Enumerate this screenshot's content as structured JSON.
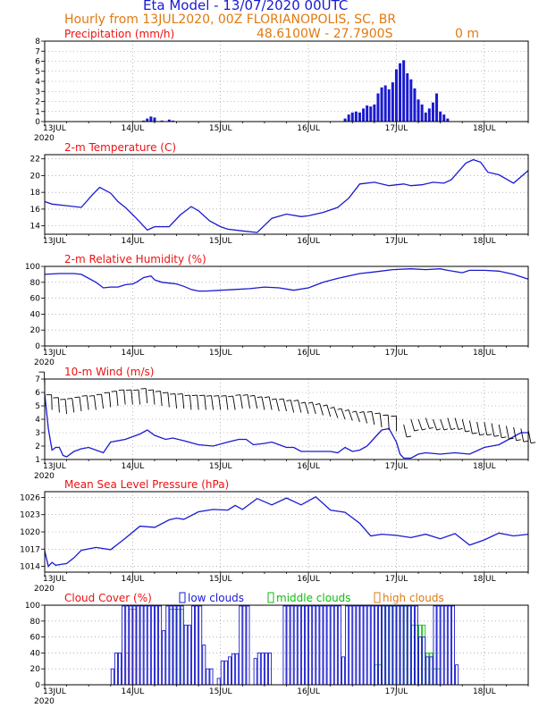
{
  "header": {
    "title": "Eta Model - 13/07/2020 00UTC",
    "line1": "Hourly from 13JUL2020, 00Z  FLORIANOPOLIS, SC, BR",
    "coords": "48.6100W - 27.7900S",
    "elevation": "0  m"
  },
  "x_axis": {
    "day_labels": [
      "13JUL",
      "14JUL",
      "15JUL",
      "16JUL",
      "17JUL",
      "18JUL"
    ],
    "year_label": "2020",
    "hours_total": 132
  },
  "colors": {
    "series": "#1a1ad0",
    "title_red": "#ee1111",
    "header_orange": "#e07a10",
    "low": "#1a1ad0",
    "middle": "#11bb11",
    "high": "#e07a10",
    "grid": "#888888"
  },
  "chart_data": [
    {
      "id": "precip",
      "type": "bar",
      "title": "Precipitation (mm/h)",
      "ylim": [
        0,
        8
      ],
      "yticks": [
        0,
        1,
        2,
        3,
        4,
        5,
        6,
        7,
        8
      ],
      "x_hours": [
        27,
        28,
        29,
        30,
        32,
        34,
        35,
        82,
        83,
        84,
        85,
        86,
        87,
        88,
        89,
        90,
        91,
        92,
        93,
        94,
        95,
        96,
        97,
        98,
        99,
        100,
        101,
        102,
        103,
        104,
        105,
        106,
        107,
        108,
        109,
        110
      ],
      "values": [
        0.1,
        0.3,
        0.5,
        0.4,
        0.1,
        0.2,
        0.1,
        0.3,
        0.7,
        0.9,
        1.0,
        0.9,
        1.3,
        1.6,
        1.5,
        1.7,
        2.8,
        3.4,
        3.6,
        3.2,
        3.9,
        5.2,
        5.8,
        6.1,
        4.8,
        4.2,
        3.3,
        2.2,
        1.7,
        0.9,
        1.3,
        1.9,
        2.8,
        1.0,
        0.7,
        0.3
      ]
    },
    {
      "id": "temp",
      "type": "line",
      "title": "2-m Temperature (C)",
      "ylim": [
        13,
        22.5
      ],
      "yticks": [
        14,
        16,
        18,
        20,
        22
      ],
      "x": [
        0,
        2,
        6,
        10,
        13,
        15,
        18,
        20,
        22,
        25,
        28,
        30,
        34,
        37,
        40,
        42,
        45,
        48,
        50,
        54,
        58,
        62,
        66,
        70,
        72,
        76,
        80,
        83,
        86,
        90,
        94,
        98,
        100,
        103,
        106,
        109,
        111,
        113,
        115,
        117,
        119,
        121,
        124,
        128,
        132
      ],
      "y": [
        16.9,
        16.6,
        16.4,
        16.2,
        17.7,
        18.6,
        17.9,
        16.9,
        16.2,
        14.9,
        13.5,
        13.9,
        13.9,
        15.3,
        16.3,
        15.8,
        14.6,
        13.9,
        13.6,
        13.4,
        13.2,
        14.9,
        15.4,
        15.1,
        15.2,
        15.6,
        16.2,
        17.3,
        19.0,
        19.2,
        18.8,
        19.0,
        18.8,
        18.9,
        19.2,
        19.1,
        19.5,
        20.5,
        21.5,
        21.9,
        21.6,
        20.4,
        20.1,
        19.1,
        20.6
      ]
    },
    {
      "id": "rh",
      "type": "line",
      "title": "2-m Relative Humidity (%)",
      "ylim": [
        0,
        100
      ],
      "yticks": [
        0,
        20,
        40,
        60,
        80,
        100
      ],
      "x": [
        0,
        4,
        8,
        10,
        14,
        16,
        18,
        20,
        22,
        24,
        25,
        27,
        29,
        30,
        32,
        34,
        36,
        38,
        40,
        42,
        44,
        48,
        52,
        56,
        60,
        64,
        68,
        72,
        76,
        80,
        86,
        90,
        95,
        100,
        104,
        108,
        110,
        114,
        116,
        120,
        124,
        128,
        132
      ],
      "y": [
        90,
        91,
        91,
        90,
        80,
        73,
        74,
        74,
        77,
        78,
        80,
        86,
        88,
        83,
        80,
        79,
        78,
        75,
        71,
        69,
        69,
        70,
        71,
        72,
        74,
        73,
        70,
        73,
        80,
        85,
        91,
        93,
        96,
        97,
        96,
        97,
        95,
        92,
        95,
        95,
        94,
        90,
        84
      ]
    },
    {
      "id": "wind",
      "type": "line",
      "title": "10-m Wind (m/s)",
      "ylim": [
        1,
        7
      ],
      "yticks": [
        1,
        2,
        3,
        4,
        5,
        6,
        7
      ],
      "x": [
        0,
        1,
        2,
        3,
        4,
        5,
        6,
        8,
        10,
        12,
        16,
        18,
        22,
        26,
        28,
        30,
        33,
        35,
        38,
        42,
        46,
        50,
        53,
        55,
        57,
        60,
        62,
        64,
        66,
        68,
        70,
        72,
        78,
        80,
        82,
        84,
        86,
        88,
        90,
        92,
        94,
        96,
        97,
        98,
        100,
        102,
        104,
        108,
        112,
        116,
        120,
        124,
        128,
        130,
        132
      ],
      "y": [
        5.9,
        3.3,
        1.7,
        1.9,
        1.9,
        1.3,
        1.2,
        1.6,
        1.8,
        1.9,
        1.5,
        2.3,
        2.5,
        2.9,
        3.2,
        2.8,
        2.5,
        2.6,
        2.4,
        2.1,
        2.0,
        2.3,
        2.5,
        2.5,
        2.1,
        2.2,
        2.3,
        2.1,
        1.9,
        1.9,
        1.6,
        1.6,
        1.6,
        1.5,
        1.9,
        1.6,
        1.7,
        2.0,
        2.6,
        3.2,
        3.3,
        2.3,
        1.4,
        1.1,
        1.1,
        1.4,
        1.5,
        1.4,
        1.5,
        1.4,
        1.9,
        2.1,
        2.7,
        3.0,
        3.0
      ],
      "barbs": {
        "x": [
          0,
          2,
          4,
          6,
          8,
          10,
          12,
          14,
          16,
          18,
          20,
          22,
          24,
          26,
          28,
          30,
          32,
          34,
          36,
          38,
          40,
          42,
          44,
          46,
          48,
          50,
          52,
          54,
          56,
          58,
          60,
          62,
          64,
          66,
          68,
          70,
          72,
          74,
          76,
          78,
          80,
          82,
          84,
          86,
          88,
          90,
          92,
          94,
          96,
          98,
          100,
          102,
          104,
          106,
          108,
          110,
          112,
          114,
          116,
          118,
          120,
          122,
          124,
          126,
          128,
          130,
          132
        ],
        "base_y": [
          6.4,
          4.7,
          4.5,
          4.4,
          4.5,
          4.6,
          4.7,
          4.7,
          4.8,
          4.9,
          5.0,
          5.1,
          5.1,
          5.1,
          5.2,
          5.1,
          5.0,
          4.9,
          4.8,
          4.8,
          4.7,
          4.7,
          4.7,
          4.7,
          4.7,
          4.7,
          4.7,
          4.8,
          4.8,
          4.8,
          4.7,
          4.7,
          4.6,
          4.6,
          4.5,
          4.5,
          4.4,
          4.4,
          4.3,
          4.2,
          4.1,
          4.0,
          3.9,
          3.8,
          3.7,
          3.6,
          3.4,
          3.2,
          3.1,
          3.6,
          4.0,
          4.0,
          4.1,
          4.0,
          4.0,
          4.1,
          4.1,
          4.0,
          3.9,
          3.8,
          3.8,
          3.7,
          3.6,
          3.5,
          3.4,
          3.3,
          3.2
        ],
        "dir_deg": [
          185,
          185,
          190,
          195,
          200,
          200,
          200,
          200,
          200,
          195,
          195,
          195,
          195,
          195,
          195,
          195,
          195,
          195,
          195,
          195,
          195,
          195,
          195,
          200,
          200,
          200,
          205,
          205,
          205,
          210,
          210,
          210,
          215,
          215,
          215,
          215,
          220,
          220,
          220,
          220,
          225,
          225,
          225,
          225,
          220,
          210,
          200,
          190,
          180,
          35,
          40,
          45,
          45,
          45,
          45,
          40,
          40,
          35,
          30,
          30,
          30,
          30,
          30,
          30,
          30,
          30,
          30
        ]
      }
    },
    {
      "id": "mslp",
      "type": "line",
      "title": "Mean Sea Level Pressure (hPa)",
      "ylim": [
        1013,
        1027
      ],
      "yticks": [
        1014,
        1017,
        1020,
        1023,
        1026
      ],
      "x": [
        0,
        1,
        2,
        3,
        4,
        6,
        8,
        10,
        14,
        18,
        22,
        26,
        30,
        34,
        36,
        38,
        42,
        46,
        50,
        52,
        54,
        58,
        62,
        66,
        70,
        74,
        78,
        82,
        86,
        89,
        92,
        96,
        100,
        104,
        108,
        112,
        116,
        120,
        124,
        128,
        132
      ],
      "y": [
        1016.7,
        1014.0,
        1014.7,
        1014.2,
        1014.3,
        1014.5,
        1015.5,
        1016.8,
        1017.3,
        1016.9,
        1018.9,
        1021.0,
        1020.8,
        1022.1,
        1022.4,
        1022.2,
        1023.5,
        1023.9,
        1023.8,
        1024.6,
        1023.9,
        1025.8,
        1024.7,
        1025.9,
        1024.7,
        1026.1,
        1023.8,
        1023.4,
        1021.5,
        1019.3,
        1019.6,
        1019.4,
        1019.0,
        1019.6,
        1018.8,
        1019.7,
        1017.7,
        1018.6,
        1019.8,
        1019.3,
        1019.6
      ]
    },
    {
      "id": "cloud",
      "type": "bar",
      "title": "Cloud Cover (%)",
      "legend": {
        "low": "low clouds",
        "middle": "middle clouds",
        "high": "high clouds"
      },
      "ylim": [
        0,
        100
      ],
      "yticks": [
        0,
        20,
        40,
        60,
        80,
        100
      ],
      "low": [
        [
          0,
          18,
          0
        ],
        [
          18,
          19,
          20
        ],
        [
          19,
          21,
          40
        ],
        [
          21,
          32,
          99
        ],
        [
          32,
          33,
          68
        ],
        [
          33,
          38,
          99
        ],
        [
          38,
          40,
          75
        ],
        [
          40,
          43,
          99
        ],
        [
          43,
          44,
          50
        ],
        [
          44,
          46,
          20
        ],
        [
          46,
          47,
          0
        ],
        [
          47,
          48,
          8
        ],
        [
          48,
          50,
          30
        ],
        [
          50,
          51,
          35
        ],
        [
          51,
          53,
          39
        ],
        [
          53,
          56,
          99
        ],
        [
          56,
          57,
          0
        ],
        [
          57,
          58,
          33
        ],
        [
          58,
          60,
          40
        ],
        [
          60,
          62,
          40
        ],
        [
          62,
          64,
          0
        ],
        [
          64,
          65,
          0
        ],
        [
          65,
          80,
          99
        ],
        [
          80,
          81,
          99
        ],
        [
          81,
          82,
          35
        ],
        [
          82,
          84,
          99
        ],
        [
          84,
          90,
          99
        ],
        [
          90,
          95,
          99
        ],
        [
          95,
          100,
          99
        ],
        [
          100,
          102,
          99
        ],
        [
          102,
          104,
          60
        ],
        [
          104,
          106,
          35
        ],
        [
          106,
          112,
          99
        ],
        [
          112,
          113,
          25
        ],
        [
          113,
          132,
          0
        ]
      ],
      "middle": [
        [
          34,
          38,
          95
        ],
        [
          90,
          92,
          25
        ],
        [
          92,
          100,
          99
        ],
        [
          100,
          104,
          75
        ],
        [
          104,
          106,
          40
        ],
        [
          106,
          108,
          20
        ]
      ],
      "high": [
        [
          22,
          23,
          40
        ],
        [
          23,
          25,
          95
        ]
      ]
    }
  ]
}
